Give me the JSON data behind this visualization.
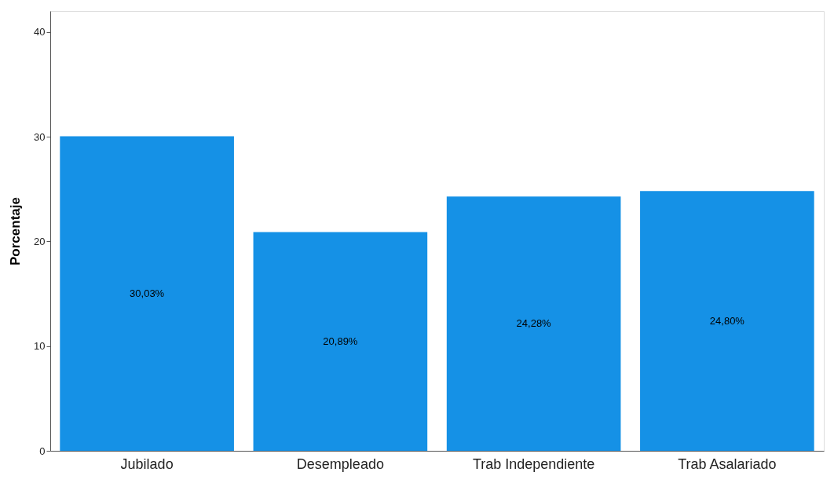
{
  "chart_data": {
    "type": "bar",
    "ylabel": "Porcentaje",
    "categories": [
      "Jubilado",
      "Desempleado",
      "Trab Independiente",
      "Trab Asalariado"
    ],
    "values": [
      30.03,
      20.89,
      24.28,
      24.8
    ],
    "value_labels": [
      "30,03%",
      "20,89%",
      "24,28%",
      "24,80%"
    ],
    "color": "#1591e6",
    "ylim": [
      0,
      42
    ],
    "yticks": [
      0,
      10,
      20,
      30,
      40
    ],
    "grid": false
  }
}
